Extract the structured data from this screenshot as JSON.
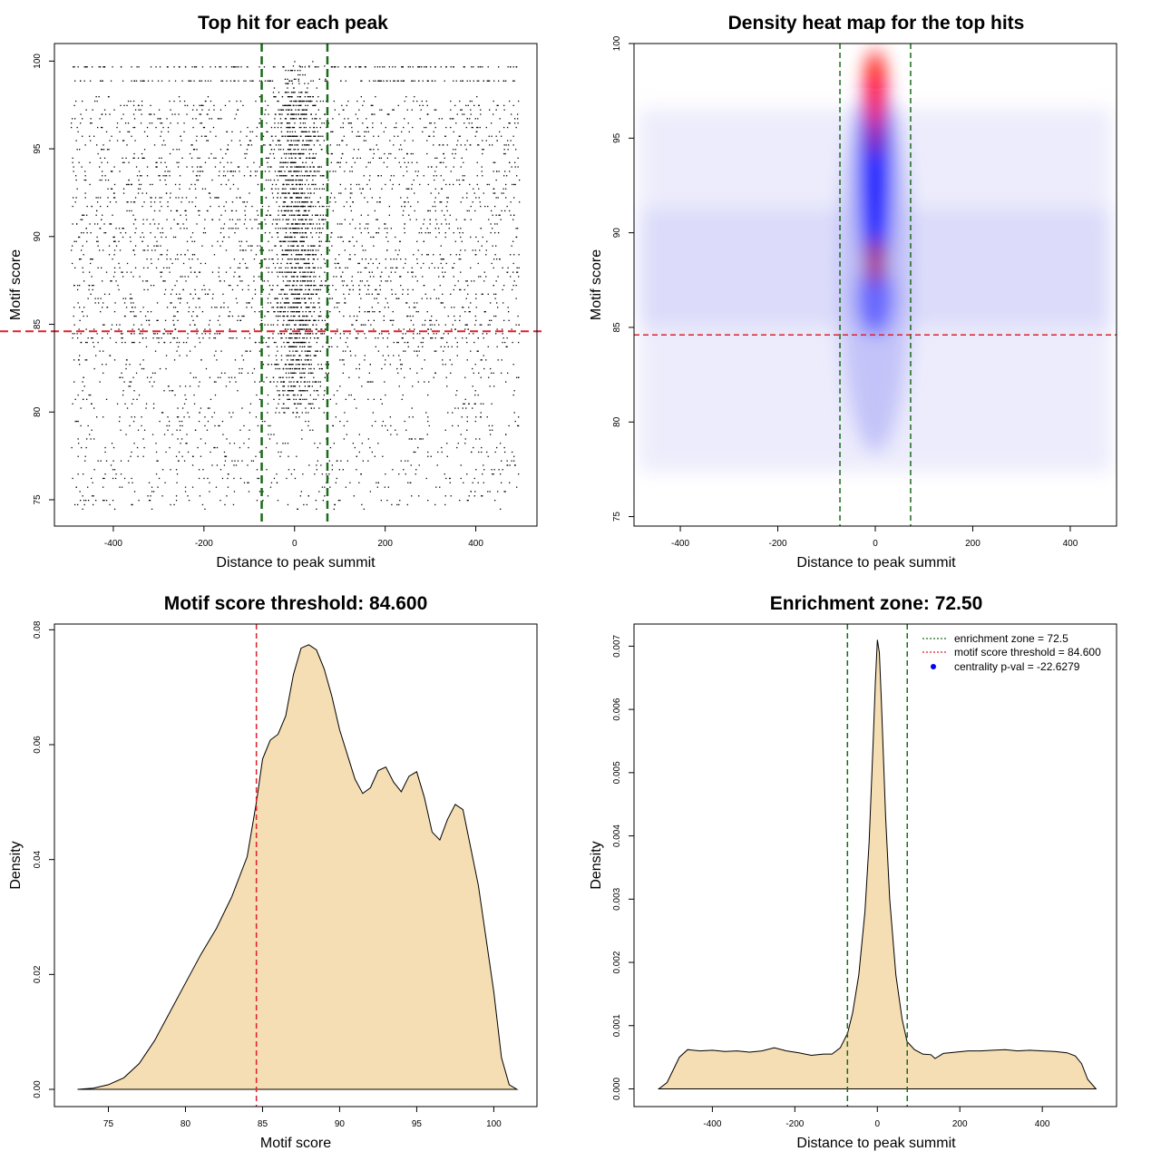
{
  "chart_data": [
    {
      "type": "scatter",
      "title": "Top hit for each peak",
      "xlabel": "Distance to peak summit",
      "ylabel": "Motif score",
      "xlim": [
        -530,
        535
      ],
      "ylim": [
        73.5,
        101
      ],
      "xticks": [
        -400,
        -200,
        0,
        200,
        400
      ],
      "yticks": [
        75,
        80,
        85,
        90,
        95,
        100
      ],
      "enrichment_zone": [
        -72.5,
        72.5
      ],
      "score_threshold": 84.6,
      "x_range": [
        -495,
        495
      ],
      "y_range": [
        74.5,
        100
      ],
      "grid": false,
      "colors": {
        "points": "#000000",
        "zone": "#1a6b1a",
        "threshold": "#e0202a"
      }
    },
    {
      "type": "heatmap",
      "title": "Density heat map for the top hits",
      "xlabel": "Distance to peak summit",
      "ylabel": "Motif score",
      "xlim": [
        -495,
        495
      ],
      "ylim": [
        74.5,
        100
      ],
      "xticks": [
        -400,
        -200,
        0,
        200,
        400
      ],
      "yticks": [
        75,
        80,
        85,
        90,
        95,
        100
      ],
      "enrichment_zone": [
        -72.5,
        72.5
      ],
      "score_threshold": 84.6,
      "density_peaks": [
        {
          "x": 0,
          "y": 97.5,
          "level": "high"
        },
        {
          "x": 0,
          "y": 88.5,
          "level": "medium"
        }
      ],
      "colormap": [
        "#ffffff",
        "#0000ff",
        "#ff0000"
      ],
      "grid": false
    },
    {
      "type": "area",
      "title": "Motif score threshold: 84.600",
      "xlabel": "Motif score",
      "ylabel": "Density",
      "xlim": [
        71.5,
        102.8
      ],
      "ylim": [
        -0.003,
        0.081
      ],
      "xticks": [
        75,
        80,
        85,
        90,
        95,
        100
      ],
      "yticks": [
        0.0,
        0.02,
        0.04,
        0.06,
        0.08
      ],
      "ytick_labels": [
        "0.00",
        "0.02",
        "0.04",
        "0.06",
        "0.08"
      ],
      "threshold": 84.6,
      "x": [
        73,
        74,
        75,
        76,
        77,
        78,
        79,
        80,
        81,
        82,
        83,
        84,
        84.6,
        85,
        85.5,
        86,
        86.5,
        87,
        87.5,
        88,
        88.5,
        89,
        89.5,
        90,
        91,
        91.5,
        92,
        92.5,
        93,
        93.5,
        94,
        94.5,
        95,
        95.5,
        96,
        96.5,
        97,
        97.5,
        98,
        99,
        100,
        100.5,
        101,
        101.5
      ],
      "values": [
        0.0,
        0.0002,
        0.0008,
        0.002,
        0.0045,
        0.0085,
        0.0135,
        0.0185,
        0.0235,
        0.028,
        0.0335,
        0.0405,
        0.05,
        0.0575,
        0.0608,
        0.0618,
        0.065,
        0.0722,
        0.0768,
        0.0774,
        0.0765,
        0.0732,
        0.0684,
        0.0626,
        0.054,
        0.0515,
        0.0525,
        0.0555,
        0.0561,
        0.0535,
        0.0518,
        0.0545,
        0.0553,
        0.0508,
        0.0448,
        0.0434,
        0.047,
        0.0496,
        0.0487,
        0.0355,
        0.017,
        0.0055,
        0.0008,
        0.0
      ],
      "grid": false,
      "colors": {
        "fill": "#f5deb3",
        "threshold": "#e0202a"
      }
    },
    {
      "type": "area",
      "title": "Enrichment zone: 72.50",
      "xlabel": "Distance to peak summit",
      "ylabel": "Density",
      "xlim": [
        -590,
        580
      ],
      "ylim": [
        -0.00028,
        0.00735
      ],
      "xticks": [
        -400,
        -200,
        0,
        200,
        400
      ],
      "yticks": [
        0.0,
        0.001,
        0.002,
        0.003,
        0.004,
        0.005,
        0.006,
        0.007
      ],
      "ytick_labels": [
        "0.000",
        "0.001",
        "0.002",
        "0.003",
        "0.004",
        "0.005",
        "0.006",
        "0.007"
      ],
      "enrichment_zone": [
        -72.5,
        72.5
      ],
      "x": [
        -530,
        -510,
        -495,
        -480,
        -460,
        -430,
        -400,
        -370,
        -340,
        -310,
        -280,
        -250,
        -220,
        -190,
        -160,
        -130,
        -110,
        -90,
        -72,
        -60,
        -45,
        -30,
        -20,
        -10,
        -5,
        0,
        5,
        10,
        20,
        30,
        45,
        60,
        72,
        90,
        110,
        130,
        140,
        160,
        190,
        220,
        250,
        280,
        310,
        340,
        370,
        400,
        430,
        460,
        480,
        495,
        510,
        530
      ],
      "values": [
        0.0,
        0.0001,
        0.0003,
        0.0005,
        0.00062,
        0.0006,
        0.00061,
        0.00059,
        0.0006,
        0.00058,
        0.0006,
        0.00065,
        0.0006,
        0.00057,
        0.00053,
        0.00055,
        0.00055,
        0.00065,
        0.00088,
        0.0012,
        0.0018,
        0.0028,
        0.0039,
        0.0055,
        0.0064,
        0.0071,
        0.0069,
        0.0061,
        0.0043,
        0.003,
        0.0018,
        0.0011,
        0.00075,
        0.00062,
        0.00055,
        0.00054,
        0.00048,
        0.00056,
        0.00058,
        0.0006,
        0.0006,
        0.00061,
        0.00062,
        0.0006,
        0.00061,
        0.0006,
        0.00059,
        0.00057,
        0.00052,
        0.0004,
        0.00015,
        0.0
      ],
      "legend": {
        "position": "top-right",
        "entries": [
          "enrichment zone = 72.5",
          "motif score threshold = 84.600",
          "centrality p-val = -22.6279"
        ]
      },
      "grid": false,
      "colors": {
        "fill": "#f5deb3",
        "zone": "#1a6b1a",
        "threshold": "#e0202a",
        "pval": "#0000ff"
      }
    }
  ]
}
